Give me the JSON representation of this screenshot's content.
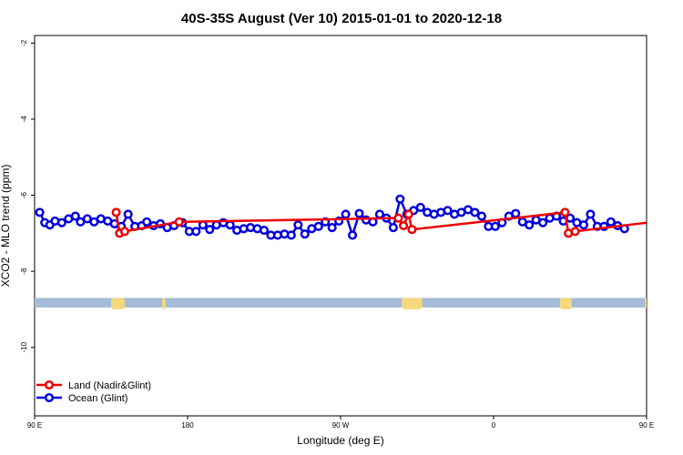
{
  "chart_data": {
    "type": "line",
    "title": "40S-35S August (Ver 10)   2015-01-01 to 2020-12-18",
    "xlabel": "Longitude (deg E)",
    "ylabel": "XCO2 - MLO trend (ppm)",
    "xlim": [
      90,
      450
    ],
    "ylim": [
      -11.8,
      -1.8
    ],
    "x_ticks": [
      {
        "value": 90,
        "label": "90 E"
      },
      {
        "value": 180,
        "label": "180"
      },
      {
        "value": 270,
        "label": "90 W"
      },
      {
        "value": 360,
        "label": "0"
      },
      {
        "value": 450,
        "label": "90 E"
      },
      {
        "value": 540,
        "label": "180"
      }
    ],
    "y_ticks": [
      {
        "value": -2,
        "label": "-2"
      },
      {
        "value": -4,
        "label": "-4"
      },
      {
        "value": -6,
        "label": "-6"
      },
      {
        "value": -8,
        "label": "-8"
      },
      {
        "value": -10,
        "label": "-10"
      }
    ],
    "grid": false,
    "legend_position": "bottom-left",
    "band": {
      "y_from": -8.7,
      "y_to": -8.95,
      "color": "#a4bcd8",
      "land_color": "#f6d97c"
    },
    "land_segments": [
      [
        135,
        143
      ],
      [
        165,
        167
      ],
      [
        306,
        318
      ],
      [
        399,
        406
      ],
      [
        449,
        450
      ]
    ],
    "series": [
      {
        "name": "Land (Nadir&Glint)",
        "color": "#ee0000",
        "points": [
          [
            138,
            -6.45
          ],
          [
            140,
            -7.0
          ],
          [
            143,
            -6.95
          ],
          [
            175,
            -6.7
          ],
          [
            304,
            -6.6
          ],
          [
            307,
            -6.8
          ],
          [
            310,
            -6.5
          ],
          [
            312,
            -6.9
          ],
          [
            402,
            -6.45
          ],
          [
            404,
            -7.0
          ],
          [
            408,
            -6.95
          ],
          [
            454,
            -6.7
          ]
        ]
      },
      {
        "name": "Ocean (Glint)",
        "color": "#0000dd",
        "points": [
          [
            93,
            -6.45
          ],
          [
            96,
            -6.72
          ],
          [
            99,
            -6.78
          ],
          [
            102,
            -6.68
          ],
          [
            106,
            -6.72
          ],
          [
            110,
            -6.62
          ],
          [
            114,
            -6.55
          ],
          [
            117,
            -6.7
          ],
          [
            121,
            -6.62
          ],
          [
            125,
            -6.7
          ],
          [
            129,
            -6.62
          ],
          [
            133,
            -6.68
          ],
          [
            137,
            -6.75
          ],
          [
            141,
            -6.82
          ],
          [
            145,
            -6.5
          ],
          [
            149,
            -6.82
          ],
          [
            153,
            -6.8
          ],
          [
            156,
            -6.7
          ],
          [
            160,
            -6.8
          ],
          [
            164,
            -6.75
          ],
          [
            168,
            -6.85
          ],
          [
            172,
            -6.8
          ],
          [
            177,
            -6.72
          ],
          [
            181,
            -6.95
          ],
          [
            185,
            -6.95
          ],
          [
            189,
            -6.78
          ],
          [
            193,
            -6.9
          ],
          [
            197,
            -6.78
          ],
          [
            201,
            -6.72
          ],
          [
            205,
            -6.78
          ],
          [
            209,
            -6.92
          ],
          [
            213,
            -6.88
          ],
          [
            217,
            -6.85
          ],
          [
            221,
            -6.88
          ],
          [
            225,
            -6.92
          ],
          [
            229,
            -7.05
          ],
          [
            233,
            -7.05
          ],
          [
            237,
            -7.02
          ],
          [
            241,
            -7.05
          ],
          [
            245,
            -6.78
          ],
          [
            249,
            -7.02
          ],
          [
            253,
            -6.88
          ],
          [
            257,
            -6.82
          ],
          [
            261,
            -6.7
          ],
          [
            265,
            -6.85
          ],
          [
            269,
            -6.68
          ],
          [
            273,
            -6.5
          ],
          [
            277,
            -7.05
          ],
          [
            281,
            -6.48
          ],
          [
            285,
            -6.65
          ],
          [
            289,
            -6.7
          ],
          [
            293,
            -6.5
          ],
          [
            297,
            -6.6
          ],
          [
            301,
            -6.85
          ],
          [
            305,
            -6.1
          ],
          [
            309,
            -6.5
          ],
          [
            313,
            -6.4
          ],
          [
            317,
            -6.32
          ],
          [
            321,
            -6.45
          ],
          [
            325,
            -6.5
          ],
          [
            329,
            -6.45
          ],
          [
            333,
            -6.4
          ],
          [
            337,
            -6.5
          ],
          [
            341,
            -6.45
          ],
          [
            345,
            -6.38
          ],
          [
            349,
            -6.45
          ],
          [
            353,
            -6.55
          ],
          [
            357,
            -6.82
          ],
          [
            361,
            -6.82
          ],
          [
            365,
            -6.72
          ],
          [
            369,
            -6.55
          ],
          [
            373,
            -6.48
          ],
          [
            377,
            -6.7
          ],
          [
            381,
            -6.78
          ],
          [
            385,
            -6.65
          ],
          [
            389,
            -6.72
          ],
          [
            393,
            -6.6
          ],
          [
            397,
            -6.55
          ],
          [
            401,
            -6.68
          ],
          [
            405,
            -6.6
          ],
          [
            409,
            -6.72
          ],
          [
            413,
            -6.78
          ],
          [
            417,
            -6.5
          ],
          [
            421,
            -6.82
          ],
          [
            425,
            -6.82
          ],
          [
            429,
            -6.7
          ],
          [
            433,
            -6.8
          ],
          [
            437,
            -6.88
          ]
        ]
      }
    ]
  }
}
